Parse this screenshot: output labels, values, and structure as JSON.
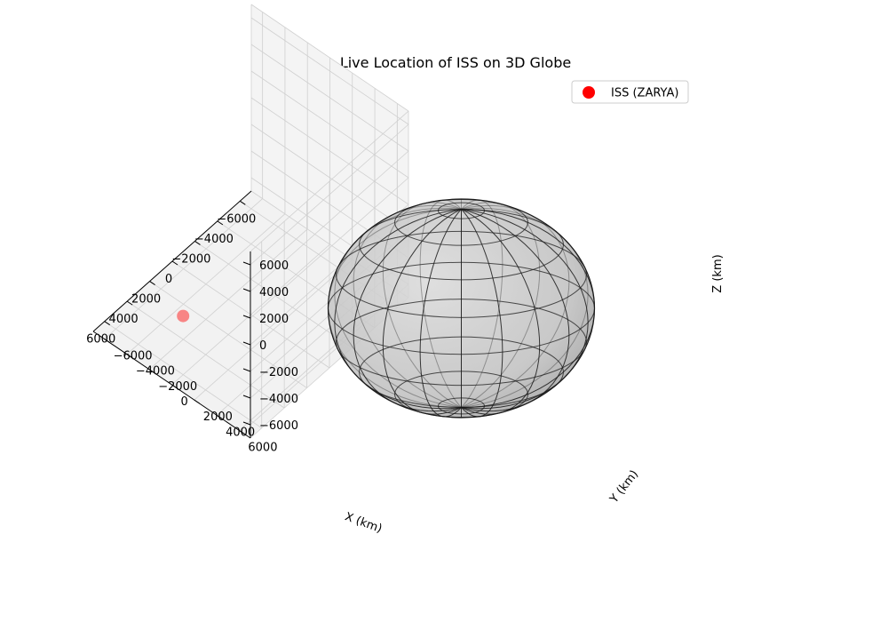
{
  "chart_data": {
    "type": "scatter",
    "title": "Live Location of ISS on 3D Globe",
    "xlabel": "X (km)",
    "ylabel": "Y (km)",
    "zlabel": "Z (km)",
    "xlim": [
      -7000,
      7000
    ],
    "ylim": [
      -7000,
      7000
    ],
    "zlim": [
      -7000,
      7000
    ],
    "xticks": [
      "−6000",
      "−4000",
      "−2000",
      "0",
      "2000",
      "4000",
      "6000"
    ],
    "yticks": [
      "−6000",
      "−4000",
      "−2000",
      "0",
      "2000",
      "4000",
      "6000"
    ],
    "zticks": [
      "−6000",
      "−4000",
      "−2000",
      "0",
      "2000",
      "4000",
      "6000"
    ],
    "grid": true,
    "legend_position": "top-right",
    "surface": {
      "shape": "sphere",
      "radius_km": 6371,
      "face_color": "#bfbfbf",
      "edge_color": "#1a1a1a"
    },
    "series": [
      {
        "name": "ISS (ZARYA)",
        "color": "#ff0000",
        "points": [
          {
            "x": 6600,
            "y": 600,
            "z": -1800
          }
        ]
      }
    ]
  }
}
